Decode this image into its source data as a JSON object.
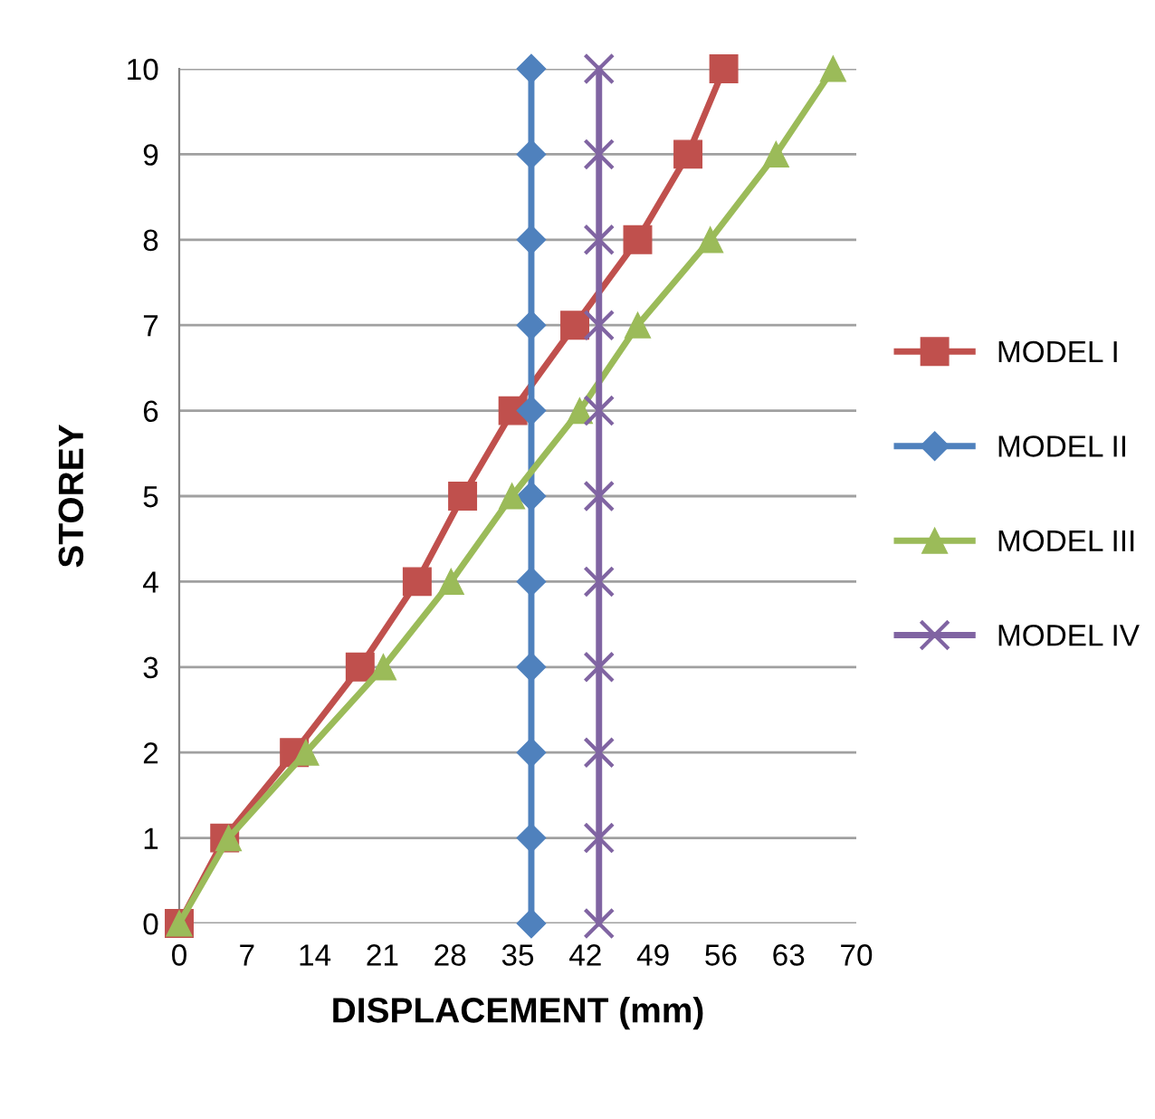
{
  "chart_data": {
    "type": "line",
    "xlabel": "DISPLACEMENT (mm)",
    "ylabel": "STOREY",
    "xlim": [
      0,
      70
    ],
    "xticks": [
      0,
      7,
      14,
      21,
      28,
      35,
      42,
      49,
      56,
      63,
      70
    ],
    "ylim": [
      0,
      10
    ],
    "yticks": [
      0,
      1,
      2,
      3,
      4,
      5,
      6,
      7,
      8,
      9,
      10
    ],
    "grid": "y",
    "legend": "right",
    "series": [
      {
        "name": "MODEL I",
        "color": "#c0504d",
        "marker": "square",
        "x": [
          0,
          4.7,
          11.9,
          18.7,
          24.6,
          29.3,
          34.5,
          40.9,
          47.4,
          52.6,
          56.3
        ],
        "values": [
          0,
          1,
          2,
          3,
          4,
          5,
          6,
          7,
          8,
          9,
          10
        ]
      },
      {
        "name": "MODEL II",
        "color": "#4f81bd",
        "marker": "diamond",
        "x": [
          36.4,
          36.4,
          36.4,
          36.4,
          36.4,
          36.4,
          36.4,
          36.4,
          36.4,
          36.4,
          36.4
        ],
        "values": [
          0,
          1,
          2,
          3,
          4,
          5,
          6,
          7,
          8,
          9,
          10
        ]
      },
      {
        "name": "MODEL III",
        "color": "#9bbb59",
        "marker": "triangle",
        "x": [
          0,
          5.1,
          13.1,
          21.1,
          28.1,
          34.4,
          41.4,
          47.4,
          54.9,
          61.7,
          67.6
        ],
        "values": [
          0,
          1,
          2,
          3,
          4,
          5,
          6,
          7,
          8,
          9,
          10
        ]
      },
      {
        "name": "MODEL IV",
        "color": "#8064a2",
        "marker": "cross",
        "x": [
          43.4,
          43.4,
          43.4,
          43.4,
          43.4,
          43.4,
          43.4,
          43.4,
          43.4,
          43.4,
          43.4
        ],
        "values": [
          0,
          1,
          2,
          3,
          4,
          5,
          6,
          7,
          8,
          9,
          10
        ]
      }
    ]
  }
}
